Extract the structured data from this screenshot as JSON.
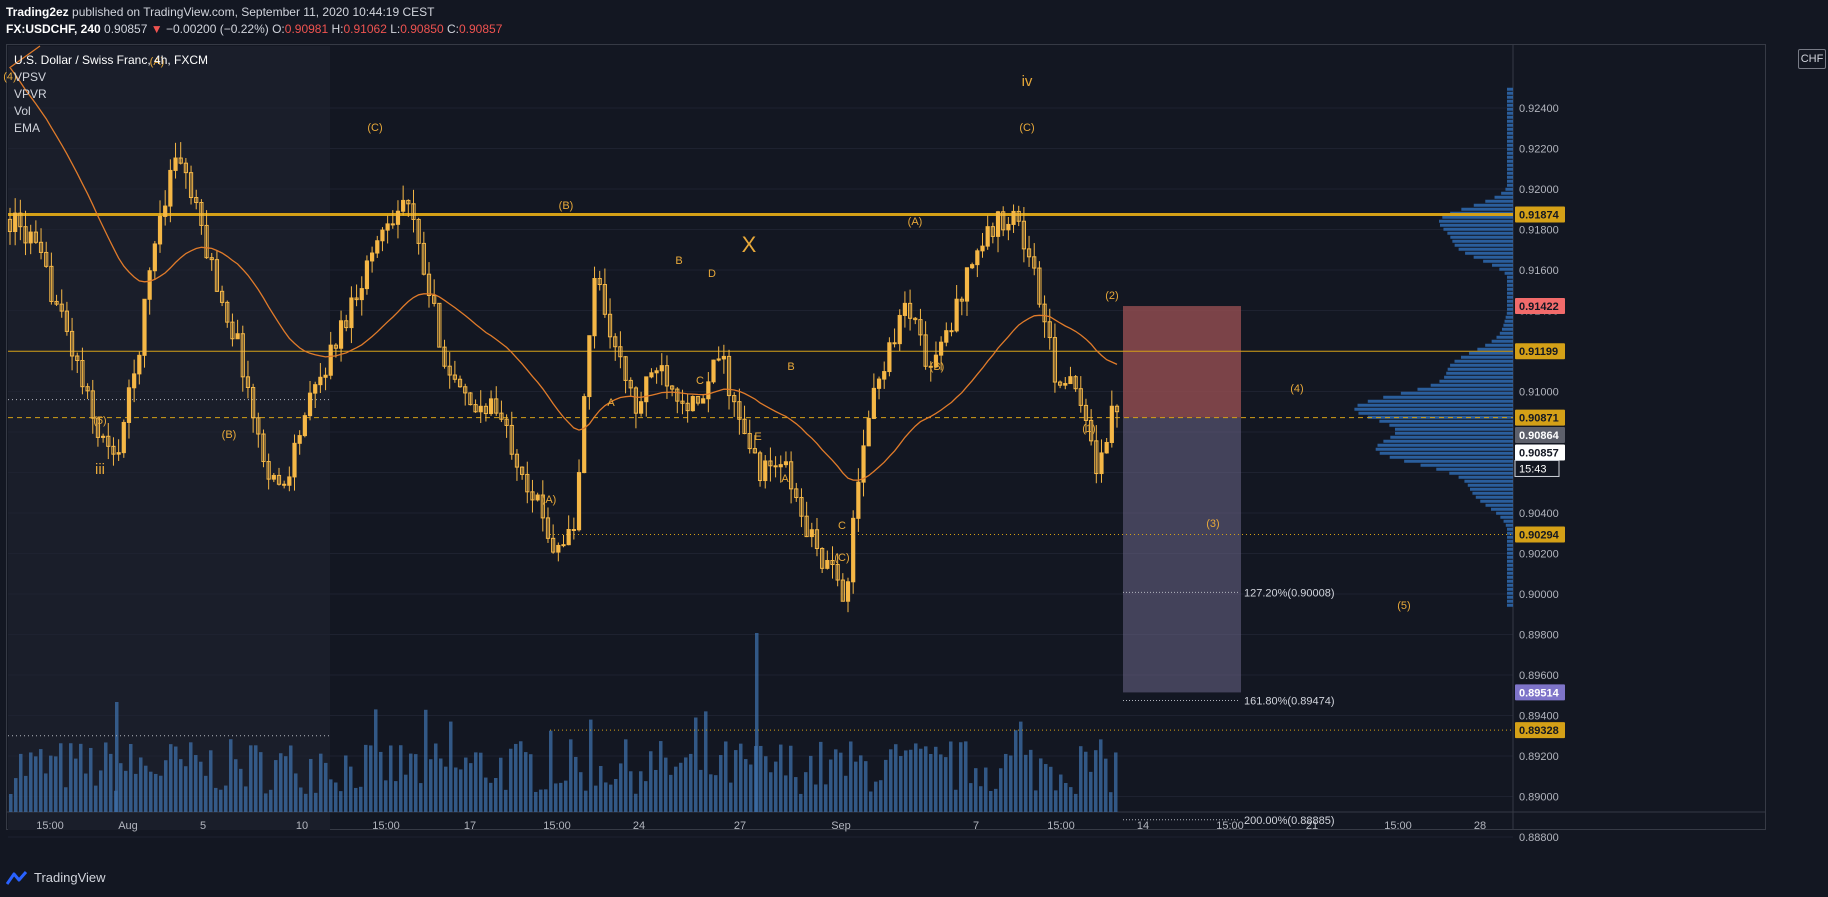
{
  "header": {
    "author": "Trading2ez",
    "published_text": "published on TradingView.com, September 11, 2020 10:44:19 CEST",
    "symbol": "FX:USDCHF, 240",
    "last": "0.90857",
    "change": "−0.00200 (−0.22%)",
    "open_label": "O:",
    "open": "0.90981",
    "high_label": "H:",
    "high": "0.91062",
    "low_label": "L:",
    "low": "0.90850",
    "close_label": "C:",
    "close": "0.90857"
  },
  "legend": {
    "title": "U.S. Dollar / Swiss Franc, 4h, FXCM",
    "indicators": [
      "VPSV",
      "VPVR",
      "Vol",
      "EMA"
    ]
  },
  "currency_button": "CHF",
  "branding": {
    "logo_text": "TradingView"
  },
  "colors": {
    "background": "#131722",
    "candle": "#f5b746",
    "resistance_line": "#d4a017",
    "ema": "#e07b2a",
    "volume": "#3d6fa8",
    "profile": "#2f6bb2",
    "short_risk_zone": "#8e4b4f",
    "short_target_zone": "#6b6688"
  },
  "chart_data": {
    "type": "candlestick",
    "instrument": "USD/CHF",
    "timeframe": "4h",
    "ylim": [
      0.888,
      0.9255
    ],
    "y_ticks": [
      "0.92400",
      "0.92200",
      "0.92000",
      "0.91800",
      "0.91600",
      "0.91400",
      "0.91200",
      "0.91000",
      "0.90800",
      "0.90600",
      "0.90400",
      "0.90200",
      "0.90000",
      "0.89800",
      "0.89600",
      "0.89400",
      "0.89200",
      "0.89000",
      "0.88800"
    ],
    "x_ticks": [
      "15:00",
      "Aug",
      "5",
      "10",
      "15:00",
      "17",
      "15:00",
      "24",
      "27",
      "Sep",
      "7",
      "15:00",
      "14",
      "15:00",
      "21",
      "15:00",
      "28"
    ],
    "close_path_approx": [
      0.9185,
      0.9175,
      0.915,
      0.912,
      0.9085,
      0.9065,
      0.911,
      0.918,
      0.922,
      0.9185,
      0.915,
      0.912,
      0.907,
      0.905,
      0.9085,
      0.911,
      0.9135,
      0.916,
      0.9185,
      0.9195,
      0.915,
      0.911,
      0.909,
      0.9095,
      0.9075,
      0.905,
      0.9025,
      0.903,
      0.916,
      0.912,
      0.909,
      0.9115,
      0.91,
      0.909,
      0.912,
      0.908,
      0.906,
      0.9065,
      0.9035,
      0.9015,
      0.9,
      0.9085,
      0.912,
      0.9145,
      0.911,
      0.913,
      0.9165,
      0.918,
      0.919,
      0.916,
      0.911,
      0.91,
      0.9065,
      0.9095
    ],
    "price_labels": [
      {
        "value": 0.91874,
        "text": "0.91874",
        "style": "gold"
      },
      {
        "value": 0.91422,
        "text": "0.91422",
        "style": "red"
      },
      {
        "value": 0.91199,
        "text": "0.91199",
        "style": "gold"
      },
      {
        "value": 0.90871,
        "text": "0.90871",
        "style": "gold"
      },
      {
        "value": 0.90864,
        "text": "0.90864",
        "style": "gray"
      },
      {
        "value": 0.90857,
        "text": "0.90857",
        "style": "white"
      },
      {
        "value": 0.90294,
        "text": "0.90294",
        "style": "gold"
      },
      {
        "value": 0.89514,
        "text": "0.89514",
        "style": "purple"
      },
      {
        "value": 0.89328,
        "text": "0.89328",
        "style": "gold"
      }
    ],
    "countdown": "15:43",
    "horizontal_lines": [
      {
        "value": 0.91874,
        "style": "thick"
      },
      {
        "value": 0.91199,
        "style": "solid"
      },
      {
        "value": 0.90871,
        "style": "dashed"
      },
      {
        "value": 0.90294,
        "style": "dotted"
      },
      {
        "value": 0.89328,
        "style": "dotted"
      }
    ],
    "fib_levels": [
      {
        "value": 0.90008,
        "text": "127.20%(0.90008)"
      },
      {
        "value": 0.89474,
        "text": "161.80%(0.89474)"
      },
      {
        "value": 0.88885,
        "text": "200.00%(0.88885)"
      }
    ],
    "position": {
      "type": "short",
      "stop": 0.91422,
      "entry": 0.90871,
      "target": 0.89514
    },
    "wave_labels": [
      "(4)",
      "(A)",
      "(5)",
      "iii",
      "(B)",
      "(C)",
      "(B)",
      "(A)",
      "X",
      "B",
      "D",
      "A",
      "C",
      "E",
      "B",
      "A",
      "C",
      "(C)",
      "(A)",
      "(B)",
      "iv",
      "(C)",
      "(2)",
      "(1)",
      "(4)",
      "(3)",
      "(5)"
    ]
  }
}
